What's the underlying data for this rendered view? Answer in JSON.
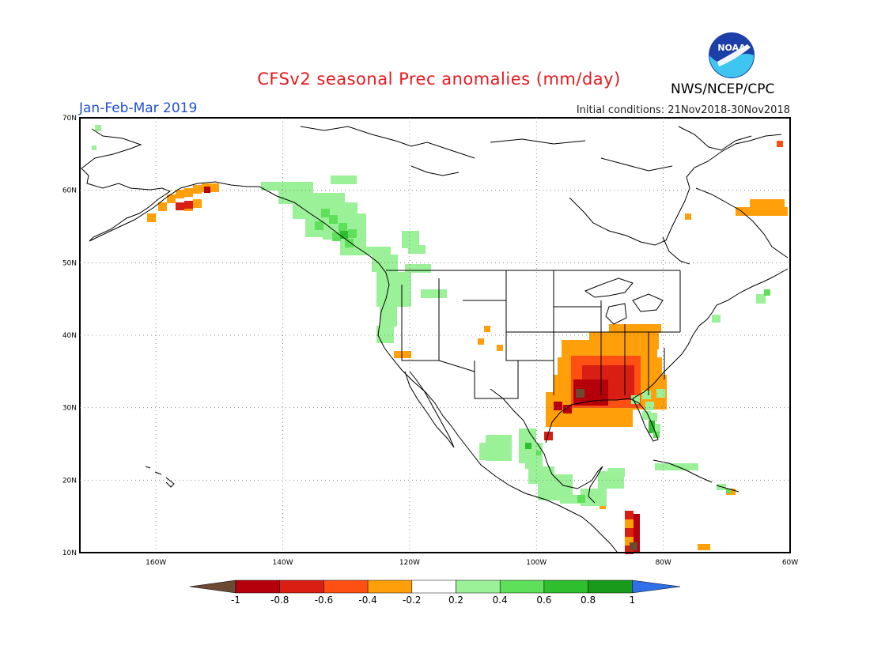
{
  "title": "CFSv2 seasonal Prec anomalies (mm/day)",
  "period": "Jan-Feb-Mar 2019",
  "initial_conditions": "Initial conditions: 21Nov2018-30Nov2018",
  "agency": "NWS/NCEP/CPC",
  "logo_text": "NOAA",
  "axes": {
    "lon_labels": [
      "160W",
      "140W",
      "120W",
      "100W",
      "80W",
      "60W"
    ],
    "lat_labels": [
      "70N",
      "60N",
      "50N",
      "40N",
      "30N",
      "20N",
      "10N"
    ],
    "lon_range": [
      -172,
      -60
    ],
    "lat_range": [
      10,
      70
    ],
    "grid": "dotted, every 20° longitude and 10° latitude"
  },
  "colorbar": {
    "labels": [
      "-1",
      "-0.8",
      "-0.6",
      "-0.4",
      "-0.2",
      "0.2",
      "0.4",
      "0.6",
      "0.8",
      "1"
    ],
    "colors": [
      "#6b4a34",
      "#b5000c",
      "#d91f14",
      "#ff5014",
      "#ff9f0a",
      "#ffffff",
      "#9af197",
      "#5fe05a",
      "#2fbf2e",
      "#1a9a1a",
      "#2f6fe8"
    ]
  }
}
